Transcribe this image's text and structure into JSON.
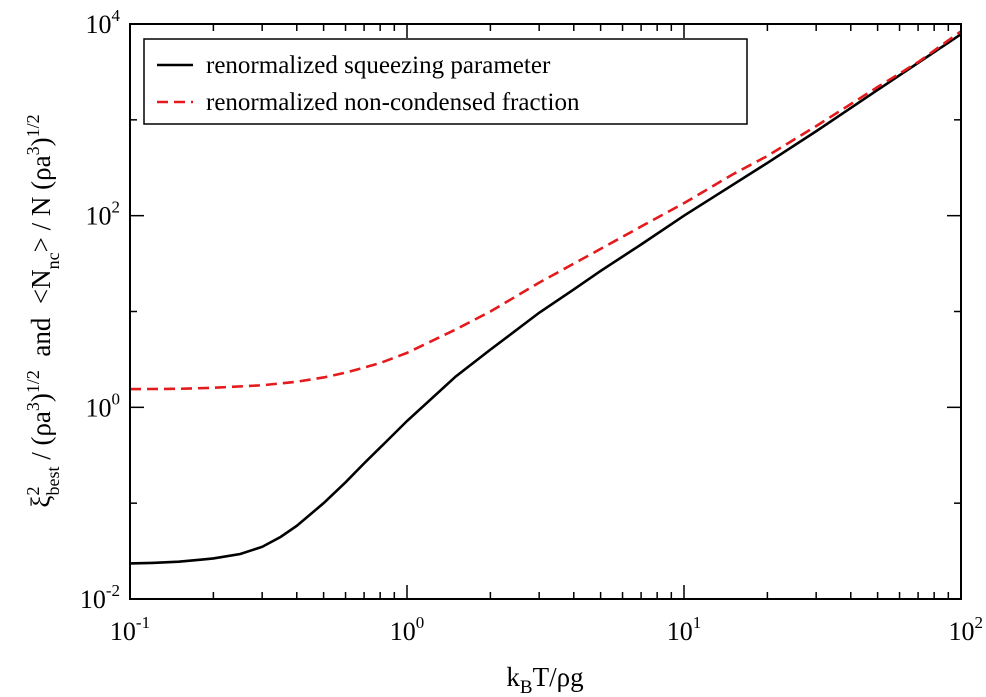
{
  "chart_data": {
    "type": "line",
    "x_scale": "log",
    "y_scale": "log",
    "xlim": [
      0.1,
      100
    ],
    "ylim": [
      0.01,
      10000
    ],
    "x_ticks": [
      {
        "value": 0.1,
        "base": "10",
        "exp": "-1"
      },
      {
        "value": 1,
        "base": "10",
        "exp": "0"
      },
      {
        "value": 10,
        "base": "10",
        "exp": "1"
      },
      {
        "value": 100,
        "base": "10",
        "exp": "2"
      }
    ],
    "y_ticks": [
      {
        "value": 0.01,
        "base": "10",
        "exp": "-2"
      },
      {
        "value": 1,
        "base": "10",
        "exp": "0"
      },
      {
        "value": 100,
        "base": "10",
        "exp": "2"
      },
      {
        "value": 10000,
        "base": "10",
        "exp": "4"
      }
    ],
    "xlabel": {
      "k": "k",
      "k_sub": "B",
      "rest": "T/ρg"
    },
    "ylabel": {
      "xi": "ξ",
      "xi_sup": "2",
      "xi_sub": "best",
      "mid1": " / (ρa",
      "cube1": "3",
      "close1": ")",
      "half1": "1/2",
      "and": "  and  ",
      "n_open": "<N",
      "n_sub": "nc",
      "n_mid": "> / N (ρa",
      "cube2": "3",
      "close2": ")",
      "half2": "1/2"
    },
    "legend": {
      "position": "top-left"
    },
    "series": [
      {
        "name": "renormalized squeezing parameter",
        "color": "#000000",
        "dash": "solid",
        "x": [
          0.1,
          0.12,
          0.15,
          0.18,
          0.2,
          0.25,
          0.3,
          0.35,
          0.4,
          0.5,
          0.6,
          0.7,
          0.8,
          1,
          1.5,
          2,
          3,
          4,
          5,
          7,
          10,
          15,
          20,
          30,
          50,
          70,
          100
        ],
        "y": [
          0.0235,
          0.0238,
          0.0245,
          0.0257,
          0.0265,
          0.0295,
          0.035,
          0.0445,
          0.058,
          0.1,
          0.165,
          0.26,
          0.38,
          0.72,
          2.1,
          4.0,
          9.7,
          17,
          26.5,
          50,
          100,
          210,
          355,
          760,
          2050,
          3930,
          7820
        ]
      },
      {
        "name": "renormalized non-condensed fraction",
        "color": "#e41a1c",
        "dash": "dashed",
        "x": [
          0.1,
          0.15,
          0.2,
          0.3,
          0.4,
          0.5,
          0.6,
          0.7,
          0.8,
          1,
          1.5,
          2,
          3,
          5,
          7,
          10,
          15,
          20,
          30,
          50,
          70,
          100
        ],
        "y": [
          1.55,
          1.56,
          1.6,
          1.7,
          1.85,
          2.05,
          2.3,
          2.6,
          2.9,
          3.7,
          6.5,
          10,
          20,
          45,
          77,
          135,
          270,
          420,
          860,
          2200,
          4000,
          8400
        ]
      }
    ]
  }
}
